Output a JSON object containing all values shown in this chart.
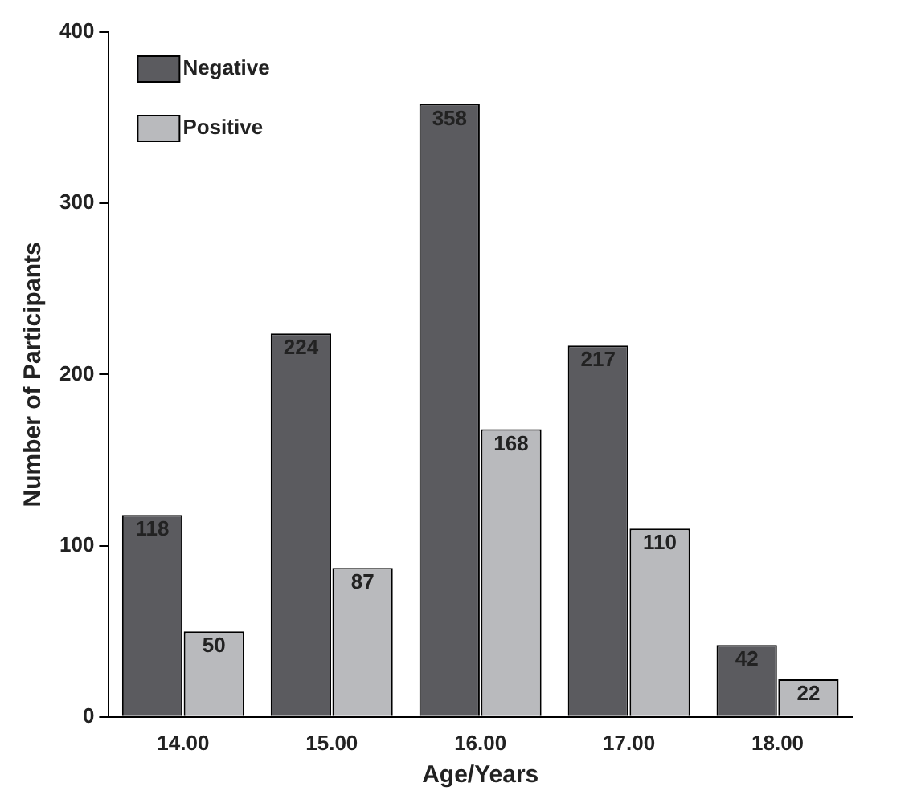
{
  "chart_data": {
    "type": "bar",
    "xlabel": "Age/Years",
    "ylabel": "Number of Participants",
    "categories": [
      "14.00",
      "15.00",
      "16.00",
      "17.00",
      "18.00"
    ],
    "series": [
      {
        "name": "Negative",
        "color": "#5b5b5f",
        "values": [
          118,
          224,
          358,
          217,
          42
        ]
      },
      {
        "name": "Positive",
        "color": "#b9babd",
        "values": [
          50,
          87,
          168,
          110,
          22
        ]
      }
    ],
    "ylim": [
      0,
      400
    ],
    "yticks": [
      0,
      100,
      200,
      300,
      400
    ],
    "grid": false,
    "legend": "top left",
    "data_labels": true
  }
}
